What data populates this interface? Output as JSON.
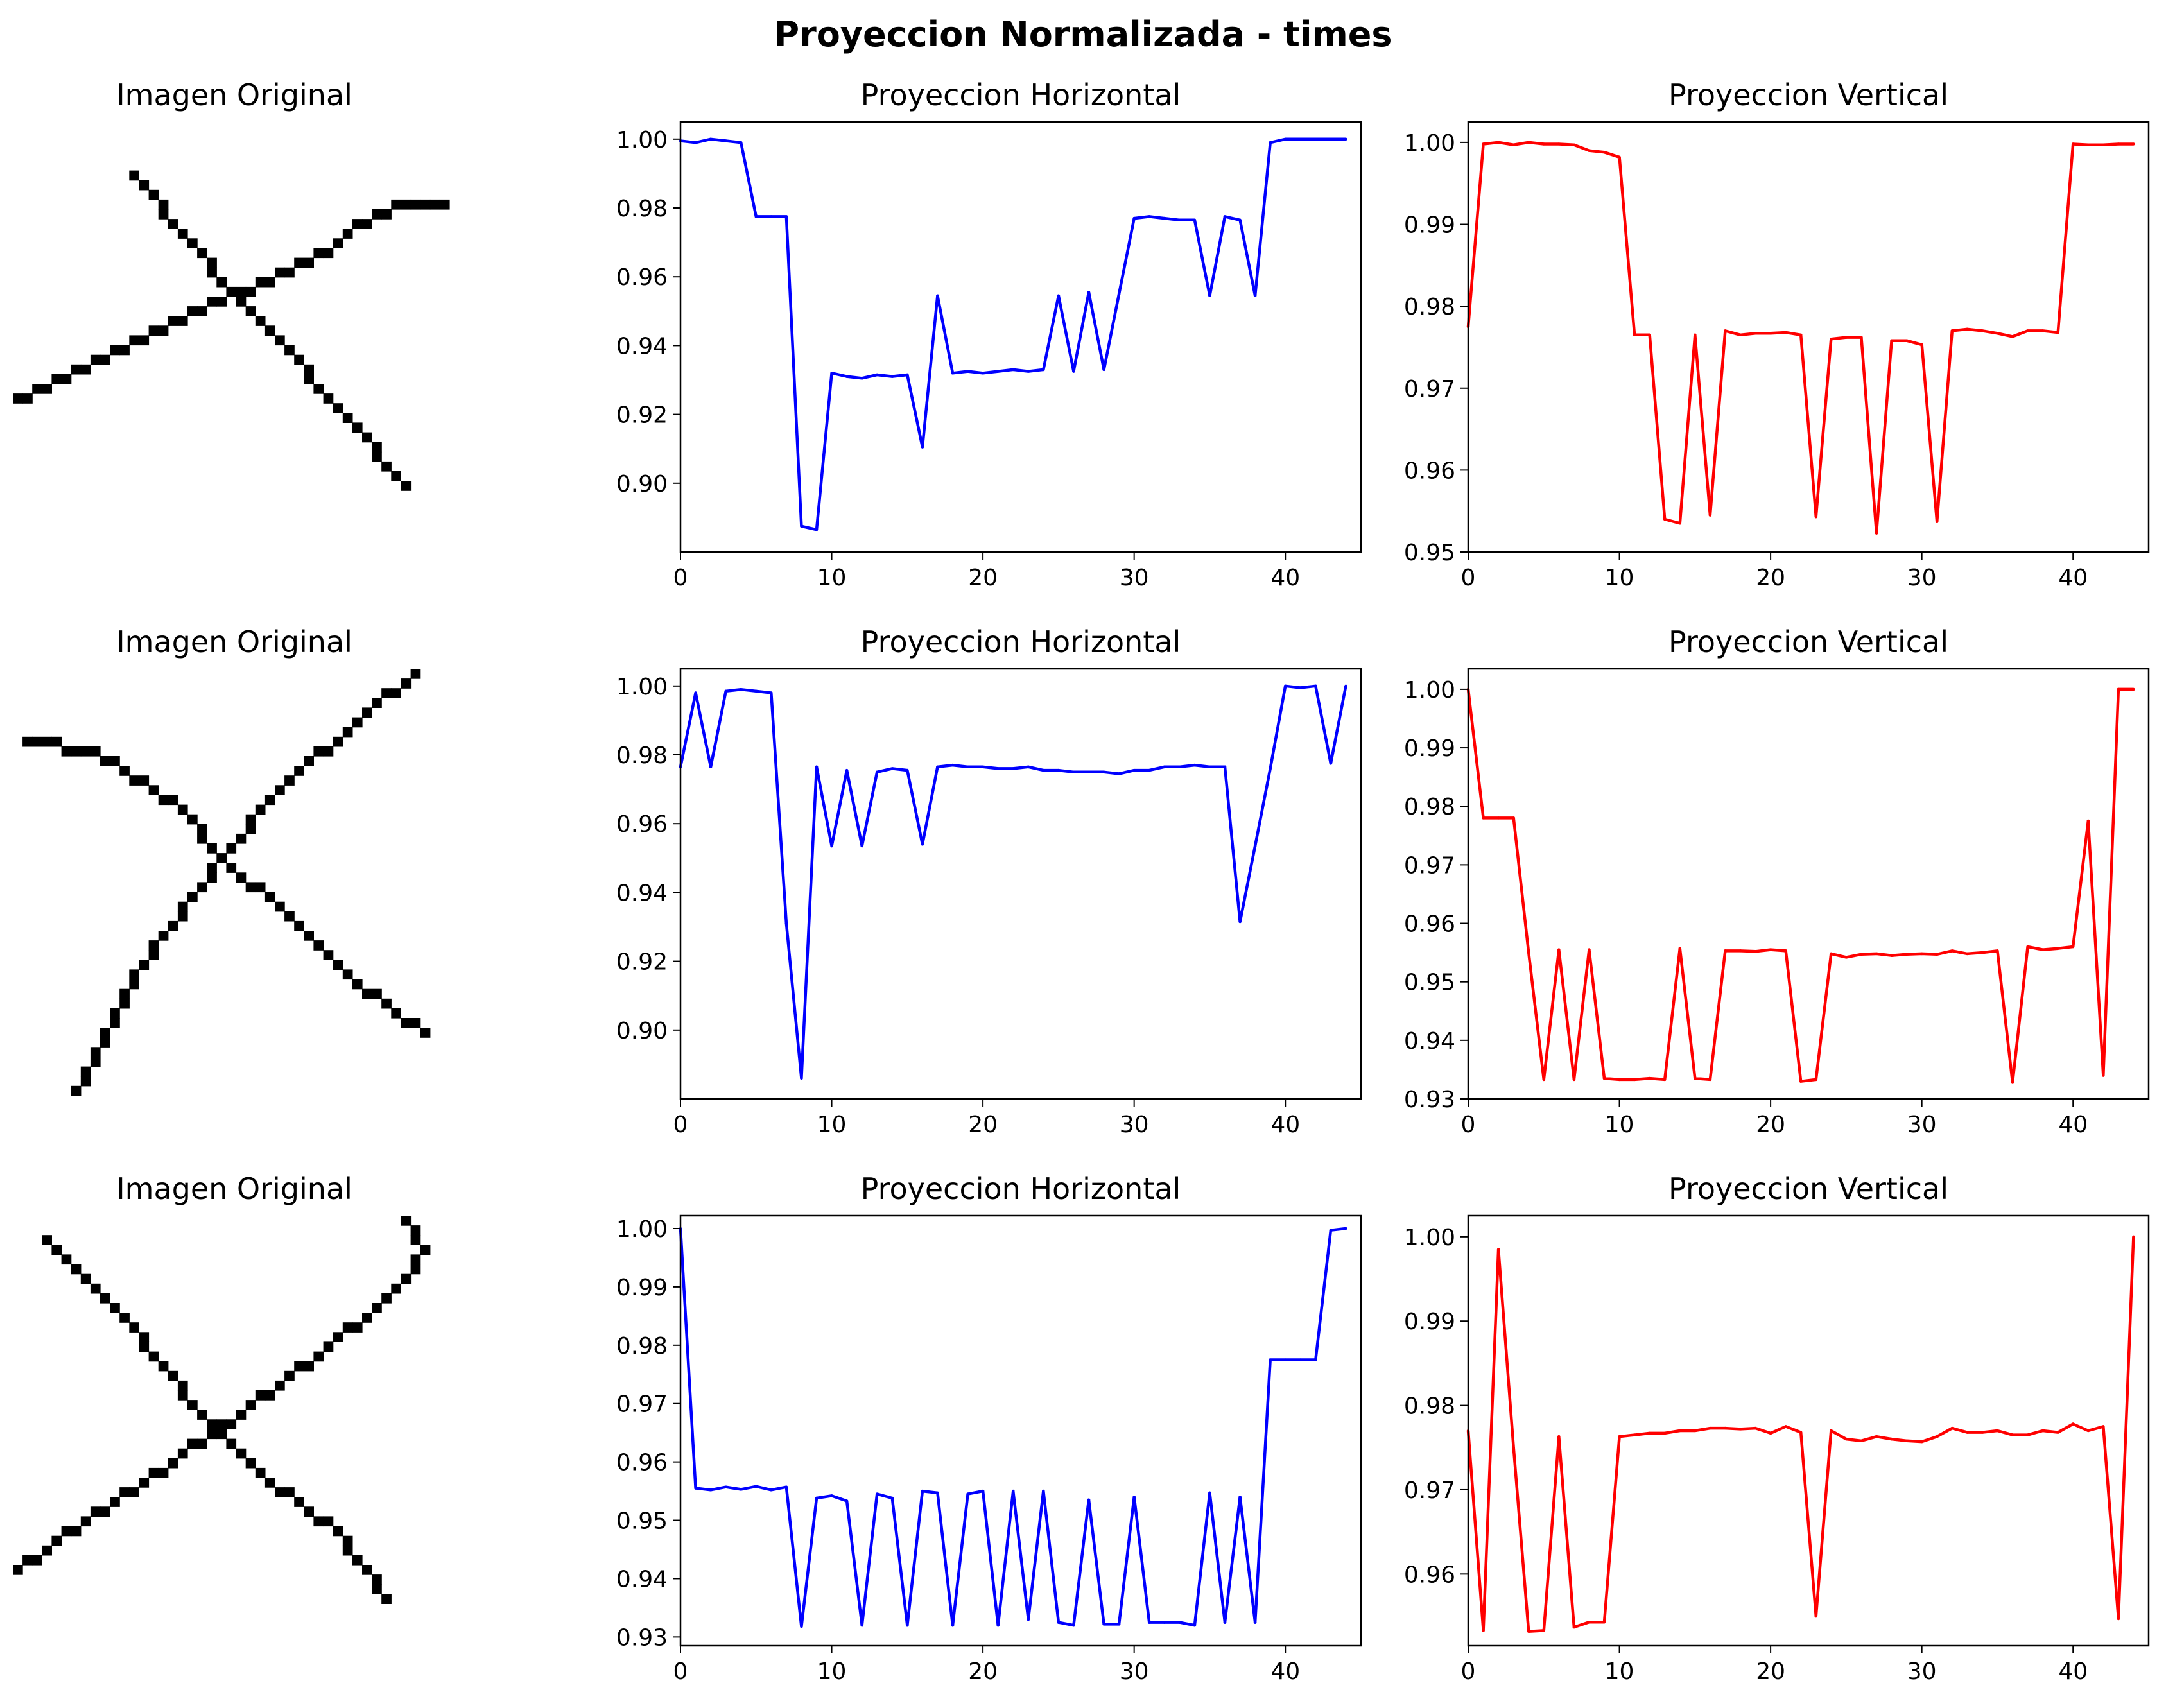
{
  "figure": {
    "title": "Proyeccion Normalizada - times"
  },
  "rows": [
    {
      "image_title": "Imagen Original",
      "horizontal_title": "Proyeccion Horizontal",
      "vertical_title": "Proyeccion Vertical"
    },
    {
      "image_title": "Imagen Original",
      "horizontal_title": "Proyeccion Horizontal",
      "vertical_title": "Proyeccion Vertical"
    },
    {
      "image_title": "Imagen Original",
      "horizontal_title": "Proyeccion Horizontal",
      "vertical_title": "Proyeccion Vertical"
    }
  ],
  "chart_data": [
    {
      "type": "line",
      "panel": "row1-horizontal",
      "title": "Proyeccion Horizontal",
      "color": "#0000ff",
      "xlim": [
        0,
        45
      ],
      "ylim": [
        0.88,
        1.005
      ],
      "xticks": [
        0,
        10,
        20,
        30,
        40
      ],
      "yticks": [
        0.9,
        0.92,
        0.94,
        0.96,
        0.98,
        1.0
      ],
      "ydecimals": 2,
      "x_start": 0,
      "values": [
        0.9995,
        0.999,
        1.0,
        0.9995,
        0.999,
        0.9775,
        0.9775,
        0.9775,
        0.8875,
        0.8865,
        0.932,
        0.931,
        0.9305,
        0.9315,
        0.931,
        0.9315,
        0.9105,
        0.9545,
        0.932,
        0.9325,
        0.932,
        0.9325,
        0.933,
        0.9325,
        0.933,
        0.9545,
        0.9325,
        0.9555,
        0.933,
        0.955,
        0.977,
        0.9775,
        0.977,
        0.9765,
        0.9765,
        0.9545,
        0.9775,
        0.9765,
        0.9545,
        0.999,
        1.0,
        1.0,
        1.0,
        1.0,
        1.0
      ]
    },
    {
      "type": "line",
      "panel": "row1-vertical",
      "title": "Proyeccion Vertical",
      "color": "#ff0000",
      "xlim": [
        0,
        45
      ],
      "ylim": [
        0.95,
        1.0025
      ],
      "xticks": [
        0,
        10,
        20,
        30,
        40
      ],
      "yticks": [
        0.95,
        0.96,
        0.97,
        0.98,
        0.99,
        1.0
      ],
      "ydecimals": 2,
      "x_start": 0,
      "values": [
        0.9775,
        0.9998,
        1.0,
        0.9997,
        1.0,
        0.9998,
        0.9998,
        0.9997,
        0.999,
        0.9988,
        0.9982,
        0.9765,
        0.9765,
        0.954,
        0.9535,
        0.9765,
        0.9545,
        0.977,
        0.9765,
        0.9767,
        0.9767,
        0.9768,
        0.9765,
        0.9543,
        0.976,
        0.9762,
        0.9762,
        0.9523,
        0.9758,
        0.9758,
        0.9753,
        0.9537,
        0.977,
        0.9772,
        0.977,
        0.9767,
        0.9763,
        0.977,
        0.977,
        0.9768,
        0.9998,
        0.9997,
        0.9997,
        0.9998,
        0.9998
      ]
    },
    {
      "type": "line",
      "panel": "row2-horizontal",
      "title": "Proyeccion Horizontal",
      "color": "#0000ff",
      "xlim": [
        0,
        45
      ],
      "ylim": [
        0.88,
        1.005
      ],
      "xticks": [
        0,
        10,
        20,
        30,
        40
      ],
      "yticks": [
        0.9,
        0.92,
        0.94,
        0.96,
        0.98,
        1.0
      ],
      "ydecimals": 2,
      "x_start": 0,
      "values": [
        0.9765,
        0.998,
        0.9765,
        0.9985,
        0.999,
        0.9985,
        0.998,
        0.931,
        0.886,
        0.9765,
        0.9535,
        0.9755,
        0.9535,
        0.975,
        0.976,
        0.9755,
        0.954,
        0.9765,
        0.977,
        0.9765,
        0.9765,
        0.976,
        0.976,
        0.9765,
        0.9755,
        0.9755,
        0.975,
        0.975,
        0.975,
        0.9745,
        0.9755,
        0.9755,
        0.9765,
        0.9765,
        0.977,
        0.9765,
        0.9765,
        0.9315,
        0.9535,
        0.976,
        1.0,
        0.9995,
        1.0,
        0.9775,
        1.0
      ]
    },
    {
      "type": "line",
      "panel": "row2-vertical",
      "title": "Proyeccion Vertical",
      "color": "#ff0000",
      "xlim": [
        0,
        45
      ],
      "ylim": [
        0.93,
        1.0035
      ],
      "xticks": [
        0,
        10,
        20,
        30,
        40
      ],
      "yticks": [
        0.93,
        0.94,
        0.95,
        0.96,
        0.97,
        0.98,
        0.99,
        1.0
      ],
      "ydecimals": 2,
      "x_start": 0,
      "values": [
        1.0,
        0.978,
        0.978,
        0.978,
        0.955,
        0.9333,
        0.9555,
        0.9333,
        0.9555,
        0.9335,
        0.9333,
        0.9333,
        0.9335,
        0.9333,
        0.9557,
        0.9335,
        0.9333,
        0.9553,
        0.9553,
        0.9552,
        0.9555,
        0.9553,
        0.933,
        0.9333,
        0.9548,
        0.9542,
        0.9547,
        0.9548,
        0.9545,
        0.9547,
        0.9548,
        0.9547,
        0.9553,
        0.9548,
        0.955,
        0.9553,
        0.9328,
        0.956,
        0.9555,
        0.9557,
        0.956,
        0.9775,
        0.934,
        1.0,
        1.0
      ]
    },
    {
      "type": "line",
      "panel": "row3-horizontal",
      "title": "Proyeccion Horizontal",
      "color": "#0000ff",
      "xlim": [
        0,
        45
      ],
      "ylim": [
        0.9285,
        1.0022
      ],
      "xticks": [
        0,
        10,
        20,
        30,
        40
      ],
      "yticks": [
        0.93,
        0.94,
        0.95,
        0.96,
        0.97,
        0.98,
        0.99,
        1.0
      ],
      "ydecimals": 2,
      "x_start": 0,
      "values": [
        1.0,
        0.9555,
        0.9552,
        0.9557,
        0.9553,
        0.9558,
        0.9552,
        0.9557,
        0.9318,
        0.9538,
        0.9542,
        0.9533,
        0.932,
        0.9545,
        0.9538,
        0.932,
        0.955,
        0.9547,
        0.932,
        0.9545,
        0.955,
        0.932,
        0.955,
        0.933,
        0.955,
        0.9325,
        0.932,
        0.9535,
        0.9322,
        0.9322,
        0.954,
        0.9325,
        0.9325,
        0.9325,
        0.932,
        0.9547,
        0.9325,
        0.954,
        0.9325,
        0.9775,
        0.9775,
        0.9775,
        0.9775,
        0.9997,
        1.0
      ]
    },
    {
      "type": "line",
      "panel": "row3-vertical",
      "title": "Proyeccion Vertical",
      "color": "#ff0000",
      "xlim": [
        0,
        45
      ],
      "ylim": [
        0.9515,
        1.0025
      ],
      "xticks": [
        0,
        10,
        20,
        30,
        40
      ],
      "yticks": [
        0.96,
        0.97,
        0.98,
        0.99,
        1.0
      ],
      "ydecimals": 2,
      "x_start": 0,
      "values": [
        0.977,
        0.9533,
        0.9985,
        0.975,
        0.9532,
        0.9533,
        0.9763,
        0.9537,
        0.9543,
        0.9543,
        0.9763,
        0.9765,
        0.9767,
        0.9767,
        0.977,
        0.977,
        0.9773,
        0.9773,
        0.9772,
        0.9773,
        0.9767,
        0.9775,
        0.9768,
        0.955,
        0.977,
        0.976,
        0.9758,
        0.9763,
        0.976,
        0.9758,
        0.9757,
        0.9763,
        0.9773,
        0.9768,
        0.9768,
        0.977,
        0.9765,
        0.9765,
        0.977,
        0.9768,
        0.9778,
        0.977,
        0.9775,
        0.9547,
        1.0
      ]
    }
  ],
  "images": [
    {
      "panel": "row1-image",
      "rows": 45,
      "cols": 45,
      "ink": "#000000",
      "strokes": [
        [
          [
            12,
            5
          ],
          [
            22,
            17
          ],
          [
            27,
            22
          ],
          [
            40,
            37
          ]
        ],
        [
          [
            0,
            28
          ],
          [
            6,
            25
          ],
          [
            16,
            20
          ],
          [
            23,
            17
          ],
          [
            30,
            14
          ],
          [
            37,
            9
          ],
          [
            40,
            8
          ],
          [
            44,
            8
          ]
        ]
      ]
    },
    {
      "panel": "row2-image",
      "rows": 45,
      "cols": 45,
      "ink": "#000000",
      "strokes": [
        [
          [
            1,
            7
          ],
          [
            8,
            8
          ],
          [
            17,
            14
          ],
          [
            20,
            18
          ],
          [
            28,
            25
          ],
          [
            35,
            32
          ],
          [
            42,
            37
          ]
        ],
        [
          [
            41,
            0
          ],
          [
            37,
            3
          ],
          [
            27,
            12
          ],
          [
            21,
            19
          ],
          [
            15,
            27
          ],
          [
            11,
            33
          ],
          [
            6,
            43
          ]
        ]
      ]
    },
    {
      "panel": "row3-image",
      "rows": 45,
      "cols": 45,
      "ink": "#000000",
      "strokes": [
        [
          [
            3,
            2
          ],
          [
            6,
            5
          ],
          [
            11,
            10
          ],
          [
            19,
            20
          ],
          [
            25,
            26
          ],
          [
            33,
            32
          ],
          [
            38,
            39
          ]
        ],
        [
          [
            40,
            0
          ],
          [
            42,
            3
          ],
          [
            39,
            7
          ],
          [
            31,
            14
          ],
          [
            20,
            22
          ],
          [
            13,
            27
          ],
          [
            4,
            33
          ],
          [
            0,
            36
          ]
        ]
      ]
    }
  ]
}
